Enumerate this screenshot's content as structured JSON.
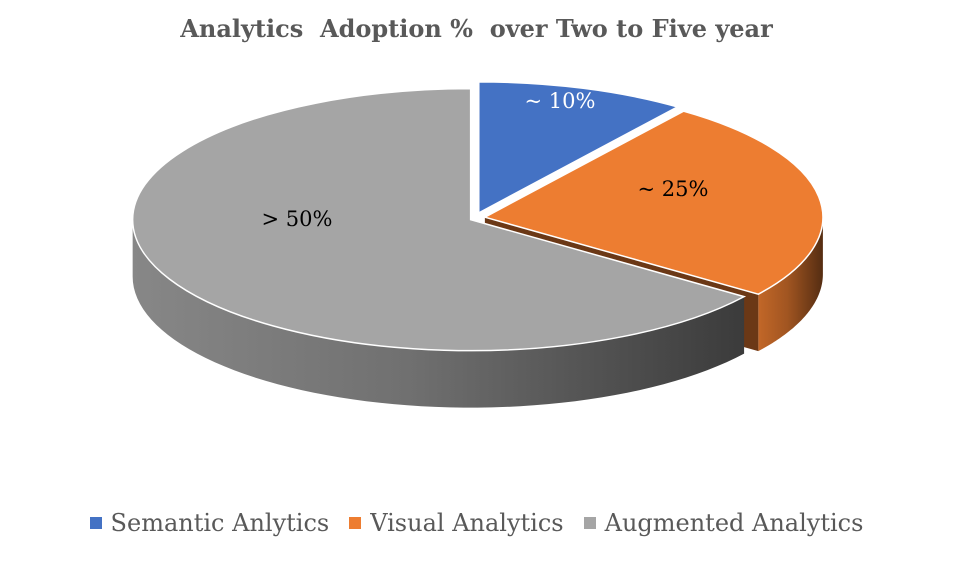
{
  "chart_data": {
    "type": "pie",
    "title": "Analytics  Adoption %  over Two to Five year",
    "categories": [
      "Semantic Anlytics",
      "Visual Analytics",
      "Augmented Analytics"
    ],
    "values": [
      10,
      25,
      65
    ],
    "data_labels": [
      "~ 10%",
      "~ 25%",
      "> 50%"
    ],
    "colors": [
      "#4472C4",
      "#ED7D31",
      "#A5A5A5"
    ],
    "label_colors": [
      "#ffffff",
      "#000000",
      "#000000"
    ],
    "legend_position": "bottom",
    "style": "3d-exploded"
  }
}
